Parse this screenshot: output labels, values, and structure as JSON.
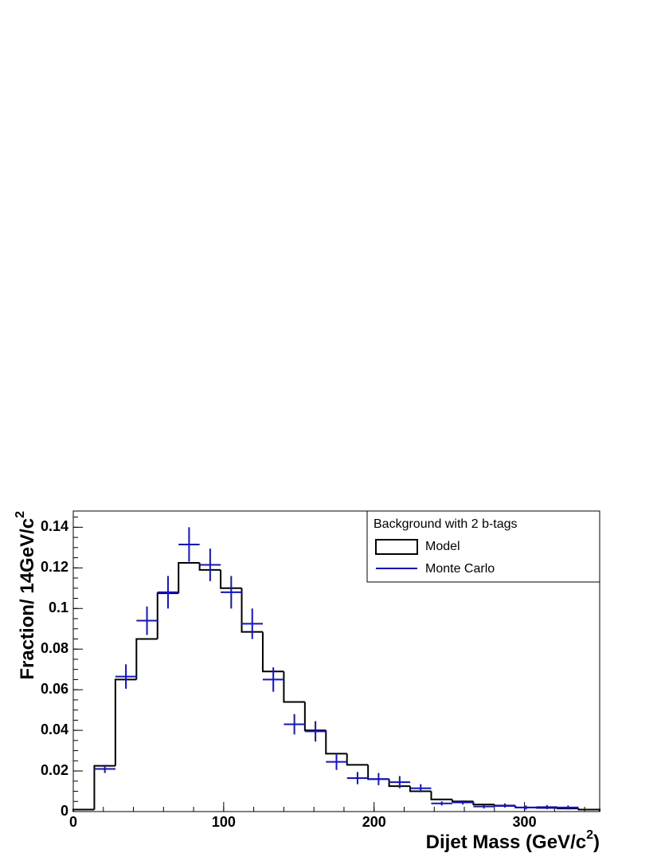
{
  "chart_data": {
    "type": "histogram",
    "x_label": [
      "Dijet Mass (GeV/c",
      "2",
      ")"
    ],
    "y_label": [
      "Fraction/ 14GeV/c",
      "2"
    ],
    "legend_title": "Background with 2 b-tags",
    "legend_position": "upper right",
    "bins": [
      0,
      14,
      28,
      42,
      56,
      70,
      84,
      98,
      112,
      126,
      140,
      154,
      168,
      182,
      196,
      210,
      224,
      238,
      252,
      266,
      280,
      294,
      308,
      322,
      336,
      350
    ],
    "series": [
      {
        "name": "Model",
        "color": "#000000",
        "values": [
          0.001,
          0.0225,
          0.065,
          0.085,
          0.1075,
          0.1225,
          0.119,
          0.11,
          0.0885,
          0.069,
          0.054,
          0.04,
          0.0285,
          0.023,
          0.016,
          0.0125,
          0.01,
          0.006,
          0.005,
          0.0035,
          0.0028,
          0.002,
          0.0018,
          0.0015,
          0.001
        ]
      },
      {
        "name": "Monte Carlo",
        "color": "#1010e0",
        "x": [
          21,
          35,
          49,
          63,
          77,
          91,
          105,
          119,
          133,
          147,
          161,
          175,
          189,
          203,
          217,
          231,
          245,
          259,
          273,
          287,
          301,
          315,
          329
        ],
        "values": [
          0.021,
          0.0665,
          0.094,
          0.108,
          0.1315,
          0.1215,
          0.108,
          0.0925,
          0.065,
          0.043,
          0.0395,
          0.0245,
          0.0165,
          0.016,
          0.0145,
          0.0115,
          0.004,
          0.0045,
          0.0025,
          0.003,
          0.002,
          0.0022,
          0.002
        ],
        "errors": [
          0.002,
          0.006,
          0.007,
          0.008,
          0.0085,
          0.008,
          0.008,
          0.0075,
          0.006,
          0.005,
          0.005,
          0.004,
          0.003,
          0.003,
          0.003,
          0.002,
          0.001,
          0.001,
          0.001,
          0.001,
          0.001,
          0.001,
          0.001
        ]
      }
    ],
    "xlim": [
      0,
      350
    ],
    "xticks": [
      0,
      100,
      200,
      300
    ],
    "ylim": [
      0,
      0.148
    ],
    "yticks": [
      0,
      0.02,
      0.04,
      0.06,
      0.08,
      0.1,
      0.12,
      0.14
    ]
  }
}
